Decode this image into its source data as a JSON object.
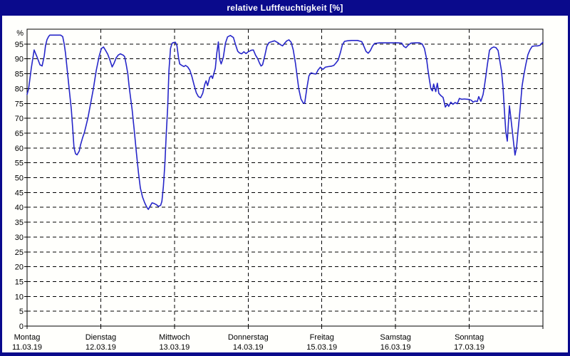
{
  "window": {
    "title": "relative Luftfeuchtigkeit [%]",
    "title_bar_color": "#0a0a8c",
    "title_text_color": "#ffffff"
  },
  "chart_data": {
    "type": "line",
    "title": "relative Luftfeuchtigkeit [%]",
    "ylabel_symbol": "%",
    "ylim": [
      0,
      100
    ],
    "ytick_step": 5,
    "grid": "dashed-black",
    "legend": "none",
    "line_color": "#2626c9",
    "x_unit": "hours",
    "x_range_hours": [
      0,
      168
    ],
    "y_ticks": [
      {
        "label": "%",
        "value": 100
      },
      {
        "label": "95",
        "value": 95
      },
      {
        "label": "90",
        "value": 90
      },
      {
        "label": "85",
        "value": 85
      },
      {
        "label": "80",
        "value": 80
      },
      {
        "label": "75",
        "value": 75
      },
      {
        "label": "70",
        "value": 70
      },
      {
        "label": "65",
        "value": 65
      },
      {
        "label": "60",
        "value": 60
      },
      {
        "label": "55",
        "value": 55
      },
      {
        "label": "50",
        "value": 50
      },
      {
        "label": "45",
        "value": 45
      },
      {
        "label": "40",
        "value": 40
      },
      {
        "label": "35",
        "value": 35
      },
      {
        "label": "30",
        "value": 30
      },
      {
        "label": "25",
        "value": 25
      },
      {
        "label": "20",
        "value": 20
      },
      {
        "label": "15",
        "value": 15
      },
      {
        "label": "10",
        "value": 10
      },
      {
        "label": "5",
        "value": 5
      },
      {
        "label": "0",
        "value": 0
      }
    ],
    "x_axis_days": [
      {
        "name": "Montag",
        "date": "11.03.19"
      },
      {
        "name": "Dienstag",
        "date": "12.03.19"
      },
      {
        "name": "Mittwoch",
        "date": "13.03.19"
      },
      {
        "name": "Donnerstag",
        "date": "14.03.19"
      },
      {
        "name": "Freitag",
        "date": "15.03.19"
      },
      {
        "name": "Samstag",
        "date": "16.03.19"
      },
      {
        "name": "Sonntag",
        "date": "17.03.19"
      }
    ],
    "series": [
      {
        "name": "relative Luftfeuchtigkeit",
        "points": [
          [
            0,
            78
          ],
          [
            0.5,
            80
          ],
          [
            1.4,
            87
          ],
          [
            2.3,
            93
          ],
          [
            3.3,
            90.5
          ],
          [
            4.2,
            88
          ],
          [
            4.9,
            87.6
          ],
          [
            5.6,
            91
          ],
          [
            6,
            94.5
          ],
          [
            6.5,
            96.5
          ],
          [
            7,
            97.5
          ],
          [
            7.4,
            98
          ],
          [
            10.9,
            98
          ],
          [
            11.6,
            97.5
          ],
          [
            12.1,
            95
          ],
          [
            12.5,
            92
          ],
          [
            13.2,
            85
          ],
          [
            13.9,
            78
          ],
          [
            14.4,
            73
          ],
          [
            14.9,
            66
          ],
          [
            15.3,
            60
          ],
          [
            15.8,
            58
          ],
          [
            16.3,
            57.7
          ],
          [
            17,
            59
          ],
          [
            17.4,
            61
          ],
          [
            18.1,
            63.5
          ],
          [
            18.6,
            65
          ],
          [
            19.1,
            67
          ],
          [
            19.8,
            70
          ],
          [
            20.7,
            75
          ],
          [
            21.6,
            80
          ],
          [
            22.5,
            86
          ],
          [
            23.5,
            91
          ],
          [
            24.2,
            93.5
          ],
          [
            24.9,
            94
          ],
          [
            25.6,
            92.8
          ],
          [
            26.3,
            91.5
          ],
          [
            27,
            89.5
          ],
          [
            27.7,
            87.3
          ],
          [
            28.3,
            88.5
          ],
          [
            29,
            90.3
          ],
          [
            29.7,
            91.3
          ],
          [
            30.4,
            91.7
          ],
          [
            31.4,
            91.2
          ],
          [
            31.8,
            90.7
          ],
          [
            32.3,
            88
          ],
          [
            32.8,
            85
          ],
          [
            33.2,
            81
          ],
          [
            33.7,
            77
          ],
          [
            34.2,
            73
          ],
          [
            34.9,
            66
          ],
          [
            35.6,
            58.5
          ],
          [
            36.3,
            51.5
          ],
          [
            36.9,
            46.5
          ],
          [
            37.6,
            43.5
          ],
          [
            38.3,
            41.5
          ],
          [
            39,
            40
          ],
          [
            39.5,
            39.3
          ],
          [
            40.2,
            40.6
          ],
          [
            40.7,
            41.5
          ],
          [
            41.4,
            41.3
          ],
          [
            42.1,
            40.9
          ],
          [
            42.8,
            40.3
          ],
          [
            43.5,
            40.7
          ],
          [
            43.9,
            42
          ],
          [
            44.4,
            47
          ],
          [
            44.9,
            55
          ],
          [
            45.3,
            64
          ],
          [
            45.8,
            74
          ],
          [
            46.2,
            86
          ],
          [
            46.7,
            93.5
          ],
          [
            47.2,
            95.2
          ],
          [
            47.6,
            95.5
          ],
          [
            48.3,
            95.6
          ],
          [
            48.8,
            94.5
          ],
          [
            49.3,
            90.5
          ],
          [
            49.7,
            88.3
          ],
          [
            50.4,
            87.8
          ],
          [
            51.1,
            87.4
          ],
          [
            51.6,
            87.8
          ],
          [
            52.3,
            87.3
          ],
          [
            53,
            86.2
          ],
          [
            53.7,
            84
          ],
          [
            54.4,
            81.2
          ],
          [
            55.1,
            78.6
          ],
          [
            55.8,
            77.3
          ],
          [
            56.5,
            76.9
          ],
          [
            57.2,
            78.4
          ],
          [
            57.9,
            81.5
          ],
          [
            58.3,
            82.6
          ],
          [
            58.8,
            81
          ],
          [
            59.5,
            83.8
          ],
          [
            60,
            84.3
          ],
          [
            60.4,
            83.4
          ],
          [
            60.9,
            85.3
          ],
          [
            61.3,
            86.8
          ],
          [
            61.8,
            92
          ],
          [
            62.3,
            95.7
          ],
          [
            62.7,
            90
          ],
          [
            63.2,
            88.3
          ],
          [
            63.9,
            90.5
          ],
          [
            64.6,
            95.3
          ],
          [
            65.3,
            97.4
          ],
          [
            66.2,
            97.9
          ],
          [
            67.2,
            97.2
          ],
          [
            67.9,
            94.8
          ],
          [
            68.6,
            92.6
          ],
          [
            69.2,
            92
          ],
          [
            69.9,
            91.7
          ],
          [
            70.6,
            92.4
          ],
          [
            71.3,
            91.8
          ],
          [
            72,
            92.4
          ],
          [
            73,
            92.9
          ],
          [
            73.7,
            93
          ],
          [
            74.4,
            91.3
          ],
          [
            75.1,
            90.1
          ],
          [
            75.7,
            88.6
          ],
          [
            76.2,
            87.6
          ],
          [
            76.7,
            88
          ],
          [
            77.4,
            91
          ],
          [
            78.1,
            94.3
          ],
          [
            78.8,
            95.5
          ],
          [
            79.7,
            95.8
          ],
          [
            80.6,
            96.1
          ],
          [
            81.6,
            95.5
          ],
          [
            82.5,
            94.8
          ],
          [
            83.2,
            94.4
          ],
          [
            83.9,
            95.3
          ],
          [
            84.6,
            96.1
          ],
          [
            85.3,
            96.4
          ],
          [
            86,
            95.6
          ],
          [
            86.7,
            93
          ],
          [
            87.4,
            88.5
          ],
          [
            87.8,
            85.3
          ],
          [
            88.5,
            79.8
          ],
          [
            89.2,
            76.5
          ],
          [
            89.9,
            75.2
          ],
          [
            90.4,
            75
          ],
          [
            91.1,
            80
          ],
          [
            91.8,
            84.3
          ],
          [
            92.5,
            85.3
          ],
          [
            93.4,
            85
          ],
          [
            94.1,
            84.9
          ],
          [
            94.8,
            86.3
          ],
          [
            95.5,
            87.2
          ],
          [
            96,
            86.7
          ],
          [
            96.4,
            86.5
          ],
          [
            97.1,
            87.2
          ],
          [
            98.1,
            87.4
          ],
          [
            99,
            87.5
          ],
          [
            99.9,
            87.8
          ],
          [
            100.6,
            88.6
          ],
          [
            101.3,
            89.6
          ],
          [
            102,
            92
          ],
          [
            102.7,
            94.8
          ],
          [
            103.4,
            95.9
          ],
          [
            104.3,
            96.1
          ],
          [
            105.7,
            96.2
          ],
          [
            107.6,
            96.2
          ],
          [
            109,
            95.8
          ],
          [
            109.7,
            94.2
          ],
          [
            110.4,
            92.5
          ],
          [
            111.1,
            91.9
          ],
          [
            111.8,
            92.8
          ],
          [
            112.5,
            94.3
          ],
          [
            113.2,
            95.2
          ],
          [
            114.8,
            95.4
          ],
          [
            117.1,
            95.4
          ],
          [
            119.4,
            95.4
          ],
          [
            120.8,
            95.4
          ],
          [
            122,
            95.3
          ],
          [
            122.7,
            94.2
          ],
          [
            123.4,
            93.8
          ],
          [
            124.1,
            94.6
          ],
          [
            125,
            95.3
          ],
          [
            126.4,
            95.4
          ],
          [
            127.8,
            95.4
          ],
          [
            128.7,
            95
          ],
          [
            129.4,
            93.5
          ],
          [
            130.1,
            90
          ],
          [
            130.6,
            86
          ],
          [
            131.1,
            82.5
          ],
          [
            131.5,
            80
          ],
          [
            132,
            79.2
          ],
          [
            132.4,
            81.5
          ],
          [
            133.1,
            79
          ],
          [
            133.6,
            81.8
          ],
          [
            134.1,
            78.4
          ],
          [
            134.8,
            77.6
          ],
          [
            135.5,
            77
          ],
          [
            136.2,
            73.8
          ],
          [
            136.9,
            74.8
          ],
          [
            137.3,
            74
          ],
          [
            138,
            75.4
          ],
          [
            138.7,
            74.7
          ],
          [
            139.4,
            75.3
          ],
          [
            140.1,
            74.9
          ],
          [
            140.8,
            76.7
          ],
          [
            141.5,
            76.4
          ],
          [
            142.4,
            76.5
          ],
          [
            143.4,
            76.4
          ],
          [
            144.1,
            76.3
          ],
          [
            144.8,
            76
          ],
          [
            145.2,
            75.4
          ],
          [
            145.9,
            75.8
          ],
          [
            146.6,
            75.6
          ],
          [
            147.1,
            77.3
          ],
          [
            147.8,
            75.7
          ],
          [
            148.5,
            78
          ],
          [
            148.9,
            80.5
          ],
          [
            149.4,
            84
          ],
          [
            149.9,
            88
          ],
          [
            150.6,
            92.9
          ],
          [
            151.3,
            93.7
          ],
          [
            152,
            94
          ],
          [
            152.7,
            93.8
          ],
          [
            153.4,
            92.8
          ],
          [
            153.8,
            90.3
          ],
          [
            154.5,
            86
          ],
          [
            155,
            80.5
          ],
          [
            155.4,
            73.5
          ],
          [
            155.9,
            65.5
          ],
          [
            156.4,
            62.3
          ],
          [
            156.8,
            69
          ],
          [
            157.1,
            74.2
          ],
          [
            157.5,
            70.5
          ],
          [
            158,
            66
          ],
          [
            158.5,
            61.2
          ],
          [
            158.9,
            57.6
          ],
          [
            159.4,
            60
          ],
          [
            159.8,
            64.8
          ],
          [
            160.3,
            70
          ],
          [
            160.8,
            76
          ],
          [
            161.2,
            80.8
          ],
          [
            161.7,
            84
          ],
          [
            162.4,
            88
          ],
          [
            163.1,
            91.4
          ],
          [
            163.8,
            93.1
          ],
          [
            164.5,
            94.2
          ],
          [
            165.4,
            94.4
          ],
          [
            166.4,
            94.4
          ],
          [
            167.1,
            94.6
          ],
          [
            167.5,
            95.1
          ],
          [
            168,
            95.6
          ]
        ]
      }
    ]
  }
}
